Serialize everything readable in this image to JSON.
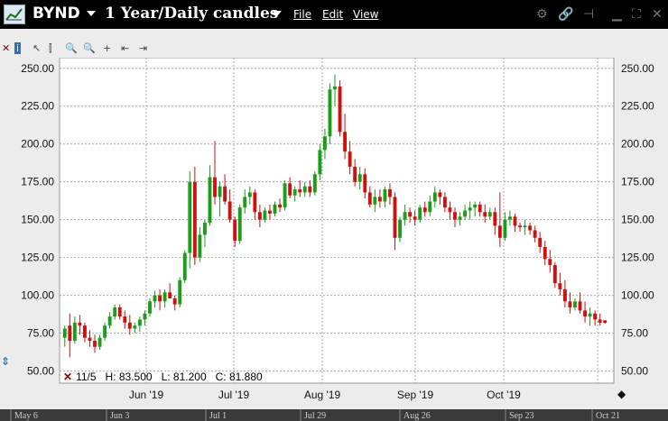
{
  "titlebar": {
    "symbol": "BYND",
    "chart_title": "1 Year/Daily candles",
    "menus": [
      "File",
      "Edit",
      "View"
    ]
  },
  "info": {
    "date": "11/5",
    "high": "H: 83.500",
    "low": "L: 81.200",
    "close": "C: 81.880"
  },
  "colors": {
    "up": "#1a9e1a",
    "down": "#cc1111",
    "titlebar": "#000000",
    "plot_bg": "#ffffff"
  },
  "chart_data": {
    "type": "candlestick",
    "title": "1 Year/Daily candles",
    "y_ticks": [
      "250.00",
      "225.00",
      "200.00",
      "175.00",
      "150.00",
      "125.00",
      "100.00",
      "75.00",
      "50.00"
    ],
    "y_tick_values": [
      250,
      225,
      200,
      175,
      150,
      125,
      100,
      75,
      50
    ],
    "ylim": [
      42,
      257
    ],
    "month_labels": [
      "Jun '19",
      "Jul '19",
      "Aug '19",
      "Sep '19",
      "Oct '19"
    ],
    "timeline_labels": [
      "May 6",
      "Jun 3",
      "Jul 1",
      "Jul 29",
      "Aug 26",
      "Sep 23",
      "Oct 21"
    ],
    "grid": true,
    "candles": [
      [
        72,
        80,
        66,
        78
      ],
      [
        80,
        88,
        59,
        70
      ],
      [
        70,
        86,
        68,
        82
      ],
      [
        82,
        87,
        74,
        80
      ],
      [
        80,
        82,
        69,
        72
      ],
      [
        72,
        77,
        66,
        70
      ],
      [
        70,
        74,
        62,
        66
      ],
      [
        66,
        74,
        64,
        72
      ],
      [
        72,
        82,
        70,
        80
      ],
      [
        80,
        89,
        78,
        86
      ],
      [
        86,
        94,
        84,
        92
      ],
      [
        92,
        94,
        84,
        86
      ],
      [
        86,
        90,
        78,
        82
      ],
      [
        82,
        87,
        74,
        78
      ],
      [
        78,
        82,
        75,
        80
      ],
      [
        80,
        86,
        76,
        84
      ],
      [
        84,
        90,
        80,
        88
      ],
      [
        88,
        98,
        86,
        96
      ],
      [
        96,
        103,
        92,
        100
      ],
      [
        100,
        104,
        90,
        96
      ],
      [
        96,
        104,
        92,
        102
      ],
      [
        102,
        108,
        98,
        98
      ],
      [
        98,
        100,
        90,
        94
      ],
      [
        94,
        112,
        92,
        110
      ],
      [
        110,
        130,
        108,
        128
      ],
      [
        128,
        182,
        118,
        175
      ],
      [
        175,
        185,
        120,
        125
      ],
      [
        125,
        145,
        122,
        140
      ],
      [
        140,
        150,
        132,
        148
      ],
      [
        148,
        186,
        146,
        178
      ],
      [
        178,
        202,
        160,
        165
      ],
      [
        165,
        175,
        152,
        172
      ],
      [
        172,
        180,
        160,
        162
      ],
      [
        162,
        170,
        148,
        150
      ],
      [
        150,
        152,
        132,
        136
      ],
      [
        136,
        160,
        134,
        158
      ],
      [
        158,
        170,
        154,
        165
      ],
      [
        165,
        172,
        160,
        168
      ],
      [
        168,
        170,
        150,
        155
      ],
      [
        155,
        160,
        145,
        150
      ],
      [
        150,
        158,
        148,
        156
      ],
      [
        156,
        160,
        150,
        154
      ],
      [
        154,
        162,
        152,
        160
      ],
      [
        160,
        164,
        155,
        158
      ],
      [
        158,
        176,
        156,
        174
      ],
      [
        174,
        178,
        164,
        166
      ],
      [
        166,
        172,
        162,
        170
      ],
      [
        170,
        176,
        165,
        168
      ],
      [
        168,
        175,
        165,
        172
      ],
      [
        172,
        176,
        165,
        168
      ],
      [
        168,
        182,
        166,
        180
      ],
      [
        180,
        200,
        176,
        196
      ],
      [
        196,
        210,
        190,
        205
      ],
      [
        205,
        240,
        200,
        236
      ],
      [
        236,
        246,
        225,
        238
      ],
      [
        238,
        242,
        205,
        208
      ],
      [
        208,
        220,
        190,
        195
      ],
      [
        195,
        202,
        180,
        185
      ],
      [
        185,
        190,
        172,
        175
      ],
      [
        175,
        185,
        170,
        180
      ],
      [
        180,
        184,
        164,
        168
      ],
      [
        168,
        172,
        158,
        160
      ],
      [
        160,
        170,
        155,
        165
      ],
      [
        165,
        170,
        158,
        162
      ],
      [
        162,
        172,
        158,
        170
      ],
      [
        170,
        174,
        160,
        165
      ],
      [
        165,
        168,
        130,
        138
      ],
      [
        138,
        152,
        135,
        150
      ],
      [
        150,
        160,
        146,
        155
      ],
      [
        155,
        158,
        148,
        152
      ],
      [
        152,
        156,
        146,
        150
      ],
      [
        150,
        160,
        148,
        158
      ],
      [
        158,
        162,
        152,
        155
      ],
      [
        155,
        166,
        152,
        162
      ],
      [
        162,
        172,
        158,
        168
      ],
      [
        168,
        170,
        160,
        165
      ],
      [
        165,
        168,
        155,
        158
      ],
      [
        158,
        162,
        150,
        155
      ],
      [
        155,
        158,
        145,
        150
      ],
      [
        150,
        155,
        146,
        152
      ],
      [
        152,
        160,
        150,
        156
      ],
      [
        156,
        162,
        150,
        158
      ],
      [
        158,
        162,
        152,
        160
      ],
      [
        160,
        162,
        152,
        155
      ],
      [
        155,
        160,
        148,
        152
      ],
      [
        152,
        158,
        150,
        155
      ],
      [
        155,
        158,
        140,
        146
      ],
      [
        146,
        168,
        132,
        138
      ],
      [
        138,
        155,
        136,
        150
      ],
      [
        150,
        156,
        146,
        152
      ],
      [
        152,
        154,
        142,
        146
      ],
      [
        146,
        148,
        142,
        145
      ],
      [
        145,
        150,
        140,
        146
      ],
      [
        146,
        148,
        140,
        143
      ],
      [
        143,
        146,
        135,
        138
      ],
      [
        138,
        142,
        128,
        132
      ],
      [
        132,
        136,
        120,
        124
      ],
      [
        124,
        130,
        115,
        120
      ],
      [
        120,
        122,
        105,
        108
      ],
      [
        108,
        115,
        100,
        104
      ],
      [
        104,
        110,
        92,
        96
      ],
      [
        96,
        102,
        88,
        92
      ],
      [
        92,
        98,
        90,
        96
      ],
      [
        96,
        102,
        88,
        90
      ],
      [
        90,
        96,
        82,
        86
      ],
      [
        86,
        92,
        80,
        88
      ],
      [
        88,
        90,
        80,
        84
      ],
      [
        84,
        88,
        80,
        82
      ],
      [
        83.5,
        83.5,
        81.2,
        81.88
      ]
    ]
  }
}
